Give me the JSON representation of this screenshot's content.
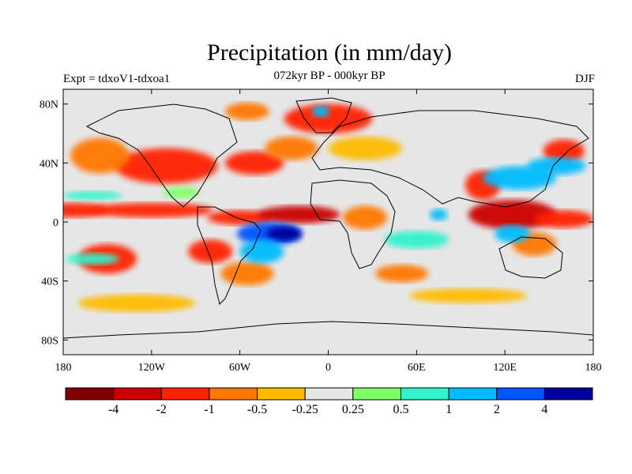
{
  "title": "Precipitation (in mm/day)",
  "left_label": "Expt = tdxoV1-tdxoa1",
  "center_label": "072kyr BP - 000kyr BP",
  "right_label": "DJF",
  "colors": {
    "ocean_land_bg": "#e6e6e6",
    "frame": "#000000",
    "coast": "#000000"
  },
  "chart_data": {
    "type": "heatmap",
    "xlim": [
      -180,
      180
    ],
    "ylim": [
      -90,
      90
    ],
    "x_ticks": [
      {
        "value": -180,
        "label": "180"
      },
      {
        "value": -120,
        "label": "120W"
      },
      {
        "value": -60,
        "label": "60W"
      },
      {
        "value": 0,
        "label": "0"
      },
      {
        "value": 60,
        "label": "60E"
      },
      {
        "value": 120,
        "label": "120E"
      },
      {
        "value": 180,
        "label": "180"
      }
    ],
    "y_ticks": [
      {
        "value": 80,
        "label": "80N"
      },
      {
        "value": 40,
        "label": "40N"
      },
      {
        "value": 0,
        "label": "0"
      },
      {
        "value": -40,
        "label": "40S"
      },
      {
        "value": -80,
        "label": "80S"
      }
    ],
    "colorbar": {
      "colors": [
        "#7f0000",
        "#cc0000",
        "#ff2200",
        "#ff7700",
        "#ffbb00",
        "#e6e6e6",
        "#80ff66",
        "#33f2cc",
        "#00bbff",
        "#0055ff",
        "#000099"
      ],
      "labels": [
        "-4",
        "-2",
        "-1",
        "-0.5",
        "-0.25",
        "0.25",
        "0.5",
        "1",
        "2",
        "4"
      ]
    },
    "anomaly_regions": [
      {
        "lon": -172,
        "lat": 8,
        "rx": 22,
        "ry": 5,
        "color": "#ff2200"
      },
      {
        "lon": -120,
        "lat": 8,
        "rx": 42,
        "ry": 5,
        "color": "#ff2200"
      },
      {
        "lon": -60,
        "lat": 3,
        "rx": 22,
        "ry": 5,
        "color": "#ff2200"
      },
      {
        "lon": -20,
        "lat": 5,
        "rx": 28,
        "ry": 6,
        "color": "#cc0000"
      },
      {
        "lon": 25,
        "lat": 3,
        "rx": 15,
        "ry": 8,
        "color": "#ff7700"
      },
      {
        "lon": 125,
        "lat": 5,
        "rx": 30,
        "ry": 10,
        "color": "#cc0000"
      },
      {
        "lon": 160,
        "lat": 2,
        "rx": 20,
        "ry": 6,
        "color": "#ff2200"
      },
      {
        "lon": -110,
        "lat": 38,
        "rx": 35,
        "ry": 12,
        "color": "#ff2200"
      },
      {
        "lon": -155,
        "lat": 45,
        "rx": 20,
        "ry": 12,
        "color": "#ff7700"
      },
      {
        "lon": -50,
        "lat": 40,
        "rx": 20,
        "ry": 8,
        "color": "#ff2200"
      },
      {
        "lon": -25,
        "lat": 50,
        "rx": 18,
        "ry": 8,
        "color": "#ff7700"
      },
      {
        "lon": 0,
        "lat": 70,
        "rx": 30,
        "ry": 10,
        "color": "#ff2200"
      },
      {
        "lon": -55,
        "lat": 75,
        "rx": 15,
        "ry": 6,
        "color": "#ff7700"
      },
      {
        "lon": 25,
        "lat": 50,
        "rx": 25,
        "ry": 8,
        "color": "#ffbb00"
      },
      {
        "lon": 105,
        "lat": 25,
        "rx": 12,
        "ry": 10,
        "color": "#ff2200"
      },
      {
        "lon": 160,
        "lat": 48,
        "rx": 14,
        "ry": 8,
        "color": "#ff2200"
      },
      {
        "lon": -150,
        "lat": -25,
        "rx": 20,
        "ry": 10,
        "color": "#ff2200"
      },
      {
        "lon": -80,
        "lat": -20,
        "rx": 15,
        "ry": 8,
        "color": "#ff2200"
      },
      {
        "lon": -55,
        "lat": -35,
        "rx": 18,
        "ry": 8,
        "color": "#ff7700"
      },
      {
        "lon": 50,
        "lat": -35,
        "rx": 18,
        "ry": 6,
        "color": "#ff7700"
      },
      {
        "lon": 140,
        "lat": -15,
        "rx": 15,
        "ry": 8,
        "color": "#ff7700"
      },
      {
        "lon": -130,
        "lat": -55,
        "rx": 40,
        "ry": 6,
        "color": "#ffbb00"
      },
      {
        "lon": 95,
        "lat": -50,
        "rx": 40,
        "ry": 5,
        "color": "#ffbb00"
      },
      {
        "lon": -40,
        "lat": -8,
        "rx": 22,
        "ry": 8,
        "color": "#0055ff"
      },
      {
        "lon": -30,
        "lat": -8,
        "rx": 12,
        "ry": 5,
        "color": "#000099"
      },
      {
        "lon": -45,
        "lat": -20,
        "rx": 15,
        "ry": 8,
        "color": "#00bbff"
      },
      {
        "lon": 130,
        "lat": 30,
        "rx": 25,
        "ry": 8,
        "color": "#00bbff"
      },
      {
        "lon": 155,
        "lat": 38,
        "rx": 20,
        "ry": 6,
        "color": "#00bbff"
      },
      {
        "lon": 125,
        "lat": -8,
        "rx": 12,
        "ry": 6,
        "color": "#00bbff"
      },
      {
        "lon": 60,
        "lat": -12,
        "rx": 22,
        "ry": 6,
        "color": "#33f2cc"
      },
      {
        "lon": 75,
        "lat": 5,
        "rx": 6,
        "ry": 4,
        "color": "#00bbff"
      },
      {
        "lon": -160,
        "lat": 18,
        "rx": 20,
        "ry": 3,
        "color": "#33f2cc"
      },
      {
        "lon": -160,
        "lat": -25,
        "rx": 18,
        "ry": 4,
        "color": "#33f2cc"
      },
      {
        "lon": -5,
        "lat": 75,
        "rx": 6,
        "ry": 4,
        "color": "#00bbff"
      },
      {
        "lon": -100,
        "lat": 20,
        "rx": 12,
        "ry": 4,
        "color": "#80ff66"
      }
    ]
  }
}
